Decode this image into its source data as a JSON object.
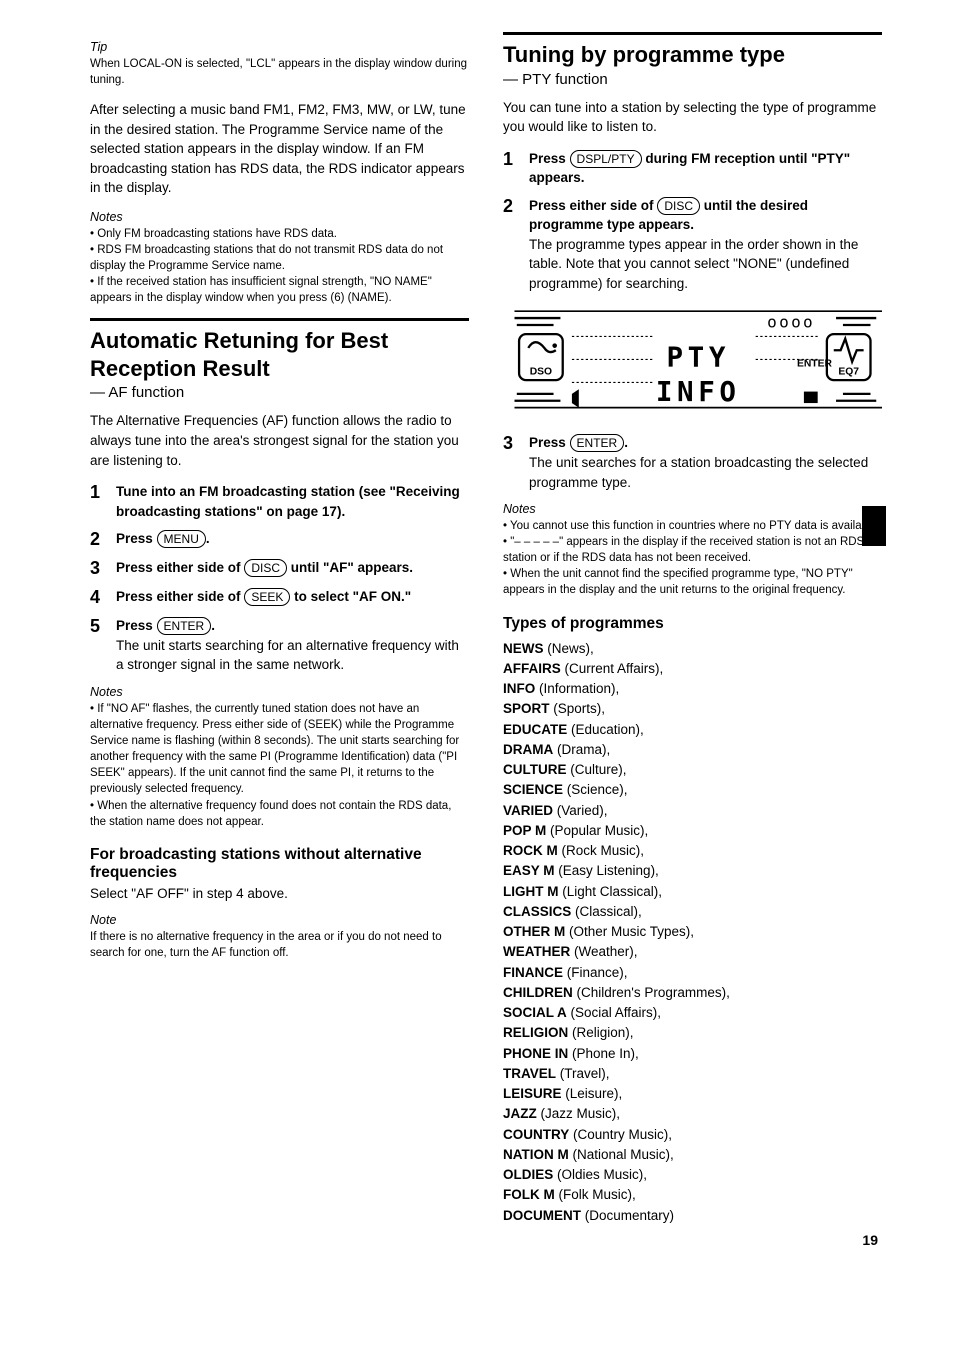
{
  "page_number": "19",
  "left": {
    "tip_title": "Tip",
    "tip_body": "When LOCAL-ON is selected, \"LCL\" appears in the display window during tuning.",
    "ps_para": "After selecting a music band FM1, FM2, FM3, MW, or LW, tune in the desired station. The Programme Service name of the selected station appears in the display window. If an FM broadcasting station has RDS data, the RDS indicator appears in the display.",
    "note2_title": "Notes",
    "note2_body": "• Only FM broadcasting stations have RDS data.\n• RDS FM broadcasting stations that do not transmit RDS data do not display the Programme Service name.\n• If the received station has insufficient signal strength, \"NO NAME\" appears in the display window when you press (6) (NAME).",
    "af_hr": true,
    "af_head1": "Automatic Retuning for Best Reception Result",
    "af_sub": "— AF function",
    "af_para": "The Alternative Frequencies (AF) function allows the radio to always tune into the area's strongest signal for the station you are listening to.",
    "af_step1_main": "Tune into an FM broadcasting station (see \"Receiving broadcasting stations\" on page 17).",
    "af_step2_main": "Press ",
    "af_step2_pill": "MENU",
    "af_step2_after": ".",
    "af_step3_main": "Press either side of ",
    "af_step3_pill": "DISC",
    "af_step3_after": " until \"AF\" appears.",
    "af_step4_main": "Press either side of ",
    "af_step4_pill": "SEEK",
    "af_step4_after": " to select \"AF ON.\"",
    "af_step5_main": "Press ",
    "af_step5_pill": "ENTER",
    "af_step5_after": ".",
    "af_step5_extra": "The unit starts searching for an alternative frequency with a stronger signal in the same network.",
    "af_notes_title": "Notes",
    "af_notes_body": "• If \"NO AF\" flashes, the currently tuned station does not have an alternative frequency. Press either side of (SEEK) while the Programme Service name is flashing (within 8 seconds). The unit starts searching for another frequency with the same PI (Programme Identification) data (\"PI SEEK\" appears). If the unit cannot find the same PI, it returns to the previously selected frequency.\n• When the alternative frequency found does not contain the RDS data, the station name does not appear.",
    "local_head": "For broadcasting stations without alternative frequencies",
    "local_body": "Select \"AF OFF\" in step 4 above.",
    "local_note_title": "Note",
    "local_note_body": "If there is no alternative frequency in the area or if you do not need to search for one, turn the AF function off."
  },
  "right": {
    "pty_head1": "Tuning by programme type",
    "pty_sub": "— PTY function",
    "pty_para": "You can tune into a station by selecting the type of programme you would like to listen to.",
    "pty_step1_pre": "Press ",
    "pty_step1_pill": "DSPL/PTY",
    "pty_step1_after": " during FM reception until \"PTY\" appears.",
    "pty_step2_main": "Press either side of ",
    "pty_step2_pill": "DISC",
    "pty_step2_after": " until the desired programme type appears.",
    "pty_step2_extra": "The programme types appear in the order shown in the table. Note that you cannot select \"NONE\" (undefined programme) for searching.",
    "lcd": {
      "line1": "PTY",
      "line2": "INFO",
      "top_right": "oooo",
      "enter": "ENTER",
      "dso": "DSO",
      "eq7": "EQ7"
    },
    "pty_step3_main": "Press ",
    "pty_step3_pill": "ENTER",
    "pty_step3_after": ".",
    "pty_step3_extra": "The unit searches for a station broadcasting the selected programme type.",
    "pty_notes_title": "Notes",
    "pty_notes_body": "• You cannot use this function in countries where no PTY data is available.\n• \"– – – – –\" appears in the display if the received station is not an RDS station or if the RDS data has not been received.\n• When the unit cannot find the specified programme type, \"NO PTY\" appears in the display and the unit returns to the original frequency.",
    "types_head": "Types of programmes",
    "types": [
      [
        "NEWS",
        "News"
      ],
      [
        "AFFAIRS",
        "Current Affairs"
      ],
      [
        "INFO",
        "Information"
      ],
      [
        "SPORT",
        "Sports"
      ],
      [
        "EDUCATE",
        "Education"
      ],
      [
        "DRAMA",
        "Drama"
      ],
      [
        "CULTURE",
        "Culture"
      ],
      [
        "SCIENCE",
        "Science"
      ],
      [
        "VARIED",
        "Varied"
      ],
      [
        "POP M",
        "Popular Music"
      ],
      [
        "ROCK M",
        "Rock Music"
      ],
      [
        "EASY M",
        "Easy Listening"
      ],
      [
        "LIGHT M",
        "Light Classical"
      ],
      [
        "CLASSICS",
        "Classical"
      ],
      [
        "OTHER M",
        "Other Music Types"
      ],
      [
        "WEATHER",
        "Weather"
      ],
      [
        "FINANCE",
        "Finance"
      ],
      [
        "CHILDREN",
        "Children's Programmes"
      ],
      [
        "SOCIAL A",
        "Social Affairs"
      ],
      [
        "RELIGION",
        "Religion"
      ],
      [
        "PHONE IN",
        "Phone In"
      ],
      [
        "TRAVEL",
        "Travel"
      ],
      [
        "LEISURE",
        "Leisure"
      ],
      [
        "JAZZ",
        "Jazz Music"
      ],
      [
        "COUNTRY",
        "Country Music"
      ],
      [
        "NATION M",
        "National Music"
      ],
      [
        "OLDIES",
        "Oldies Music"
      ],
      [
        "FOLK M",
        "Folk Music"
      ],
      [
        "DOCUMENT",
        "Documentary"
      ]
    ]
  }
}
